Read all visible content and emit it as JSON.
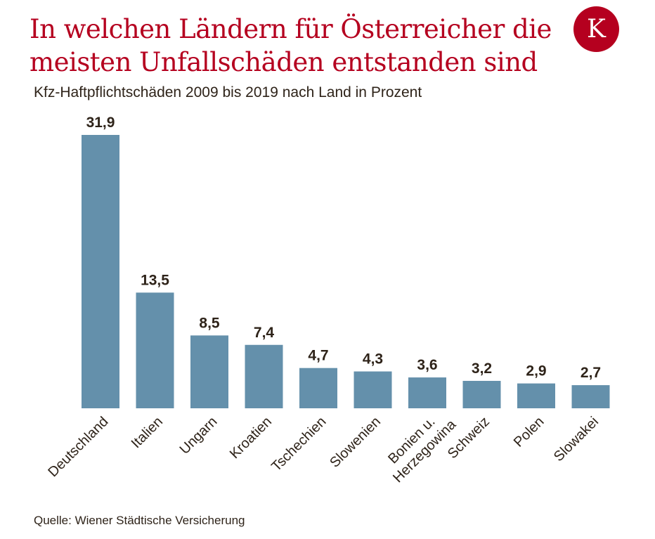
{
  "logo": {
    "letter": "K"
  },
  "chart_data": {
    "type": "bar",
    "title": "In welchen Ländern für Österreicher die meisten Unfallschäden entstanden sind",
    "subtitle": "Kfz-Haftpflichtschäden 2009 bis 2019 nach Land in Prozent",
    "source": "Quelle: Wiener Städtische Versicherung",
    "categories": [
      "Deutschland",
      "Italien",
      "Ungarn",
      "Kroatien",
      "Tschechien",
      "Slowenien",
      "Bonien u.\nHerzegowina",
      "Schweiz",
      "Polen",
      "Slowakei"
    ],
    "values": [
      31.9,
      13.5,
      8.5,
      7.4,
      4.7,
      4.3,
      3.6,
      3.2,
      2.9,
      2.7
    ],
    "value_labels": [
      "31,9",
      "13,5",
      "8,5",
      "7,4",
      "4,7",
      "4,3",
      "3,6",
      "3,2",
      "2,9",
      "2,7"
    ],
    "xlabel": "",
    "ylabel": "",
    "ylim": [
      0,
      31.9
    ],
    "grid": false,
    "colors": {
      "bar": "#6490ab",
      "title": "#b5001f",
      "text": "#2e2319"
    }
  }
}
